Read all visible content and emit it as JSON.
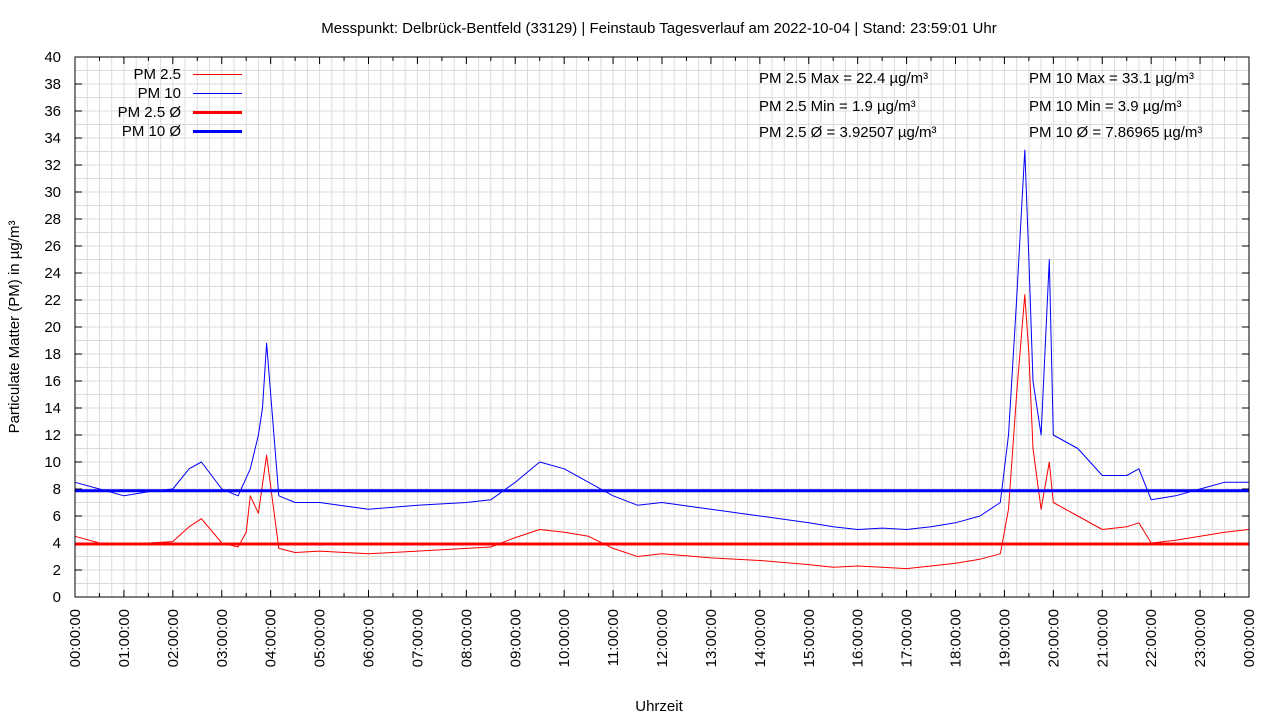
{
  "chart_data": {
    "type": "line",
    "title": "Messpunkt: Delbrück-Bentfeld (33129) | Feinstaub Tagesverlauf am 2022-10-04 | Stand: 23:59:01 Uhr",
    "xlabel": "Uhrzeit",
    "ylabel": "Particulate Matter (PM) in µg/m³",
    "ylim": [
      0,
      40
    ],
    "yticks": [
      "0",
      "2",
      "4",
      "6",
      "8",
      "10",
      "12",
      "14",
      "16",
      "18",
      "20",
      "22",
      "24",
      "26",
      "28",
      "30",
      "32",
      "34",
      "36",
      "38",
      "40"
    ],
    "xlim": [
      "00:00:00",
      "24:00:00"
    ],
    "xticks": [
      "00:00:00",
      "01:00:00",
      "02:00:00",
      "03:00:00",
      "04:00:00",
      "05:00:00",
      "06:00:00",
      "07:00:00",
      "08:00:00",
      "09:00:00",
      "10:00:00",
      "11:00:00",
      "12:00:00",
      "13:00:00",
      "14:00:00",
      "15:00:00",
      "16:00:00",
      "17:00:00",
      "18:00:00",
      "19:00:00",
      "20:00:00",
      "21:00:00",
      "22:00:00",
      "23:00:00",
      "00:00:00"
    ],
    "grid": true,
    "legend_position": "top-left",
    "legend": [
      "PM 2.5",
      "PM 10",
      "PM 2.5 Ø",
      "PM 10 Ø"
    ],
    "colors": {
      "pm25": "#ff0000",
      "pm10": "#0000ff"
    },
    "series": [
      {
        "name": "PM 2.5",
        "x": [
          "00:00",
          "00:30",
          "01:00",
          "01:30",
          "02:00",
          "02:20",
          "02:35",
          "03:00",
          "03:20",
          "03:30",
          "03:35",
          "03:45",
          "03:55",
          "04:10",
          "04:30",
          "05:00",
          "06:00",
          "07:00",
          "08:00",
          "08:30",
          "09:00",
          "09:30",
          "10:00",
          "10:30",
          "11:00",
          "11:30",
          "12:00",
          "13:00",
          "14:00",
          "15:00",
          "15:30",
          "16:00",
          "16:30",
          "17:00",
          "17:30",
          "18:00",
          "18:30",
          "18:55",
          "19:05",
          "19:15",
          "19:25",
          "19:30",
          "19:35",
          "19:45",
          "19:55",
          "20:00",
          "20:30",
          "21:00",
          "21:30",
          "21:45",
          "22:00",
          "22:30",
          "23:00",
          "23:30",
          "24:00"
        ],
        "values": [
          4.5,
          4.0,
          3.9,
          4.0,
          4.1,
          5.2,
          5.8,
          4.0,
          3.7,
          4.8,
          7.5,
          6.2,
          10.5,
          3.6,
          3.3,
          3.4,
          3.2,
          3.4,
          3.6,
          3.7,
          4.4,
          5.0,
          4.8,
          4.5,
          3.6,
          3.0,
          3.2,
          2.9,
          2.7,
          2.4,
          2.2,
          2.3,
          2.2,
          2.1,
          2.3,
          2.5,
          2.8,
          3.2,
          6.5,
          15.0,
          22.4,
          18.0,
          11.0,
          6.5,
          10.0,
          7.0,
          6.0,
          5.0,
          5.2,
          5.5,
          4.0,
          4.2,
          4.5,
          4.8,
          5.0
        ]
      },
      {
        "name": "PM 10",
        "x": [
          "00:00",
          "00:30",
          "01:00",
          "01:30",
          "02:00",
          "02:20",
          "02:35",
          "03:00",
          "03:20",
          "03:35",
          "03:45",
          "03:50",
          "03:55",
          "04:10",
          "04:30",
          "05:00",
          "06:00",
          "07:00",
          "08:00",
          "08:30",
          "09:00",
          "09:30",
          "10:00",
          "10:30",
          "11:00",
          "11:30",
          "12:00",
          "13:00",
          "14:00",
          "15:00",
          "15:30",
          "16:00",
          "16:30",
          "17:00",
          "17:30",
          "18:00",
          "18:30",
          "18:55",
          "19:05",
          "19:15",
          "19:25",
          "19:30",
          "19:35",
          "19:45",
          "19:55",
          "20:00",
          "20:30",
          "21:00",
          "21:30",
          "21:45",
          "22:00",
          "22:30",
          "23:00",
          "23:30",
          "24:00"
        ],
        "values": [
          8.5,
          8.0,
          7.5,
          7.8,
          8.0,
          9.5,
          10.0,
          8.0,
          7.5,
          9.5,
          12.0,
          14.0,
          18.8,
          7.5,
          7.0,
          7.0,
          6.5,
          6.8,
          7.0,
          7.2,
          8.5,
          10.0,
          9.5,
          8.5,
          7.5,
          6.8,
          7.0,
          6.5,
          6.0,
          5.5,
          5.2,
          5.0,
          5.1,
          5.0,
          5.2,
          5.5,
          6.0,
          7.0,
          12.0,
          22.0,
          33.1,
          25.0,
          16.0,
          12.0,
          25.0,
          12.0,
          11.0,
          9.0,
          9.0,
          9.5,
          7.2,
          7.5,
          8.0,
          8.5,
          8.5
        ]
      },
      {
        "name": "PM 2.5 Ø",
        "value": 3.92507
      },
      {
        "name": "PM 10 Ø",
        "value": 7.86965
      }
    ],
    "stats": {
      "pm25_max": "PM 2.5 Max = 22.4 µg/m³",
      "pm25_min": "PM 2.5 Min = 1.9 µg/m³",
      "pm25_avg": "PM 2.5 Ø = 3.92507 µg/m³",
      "pm10_max": "PM 10 Max = 33.1 µg/m³",
      "pm10_min": "PM 10 Min = 3.9 µg/m³",
      "pm10_avg": "PM 10 Ø = 7.86965 µg/m³"
    }
  }
}
